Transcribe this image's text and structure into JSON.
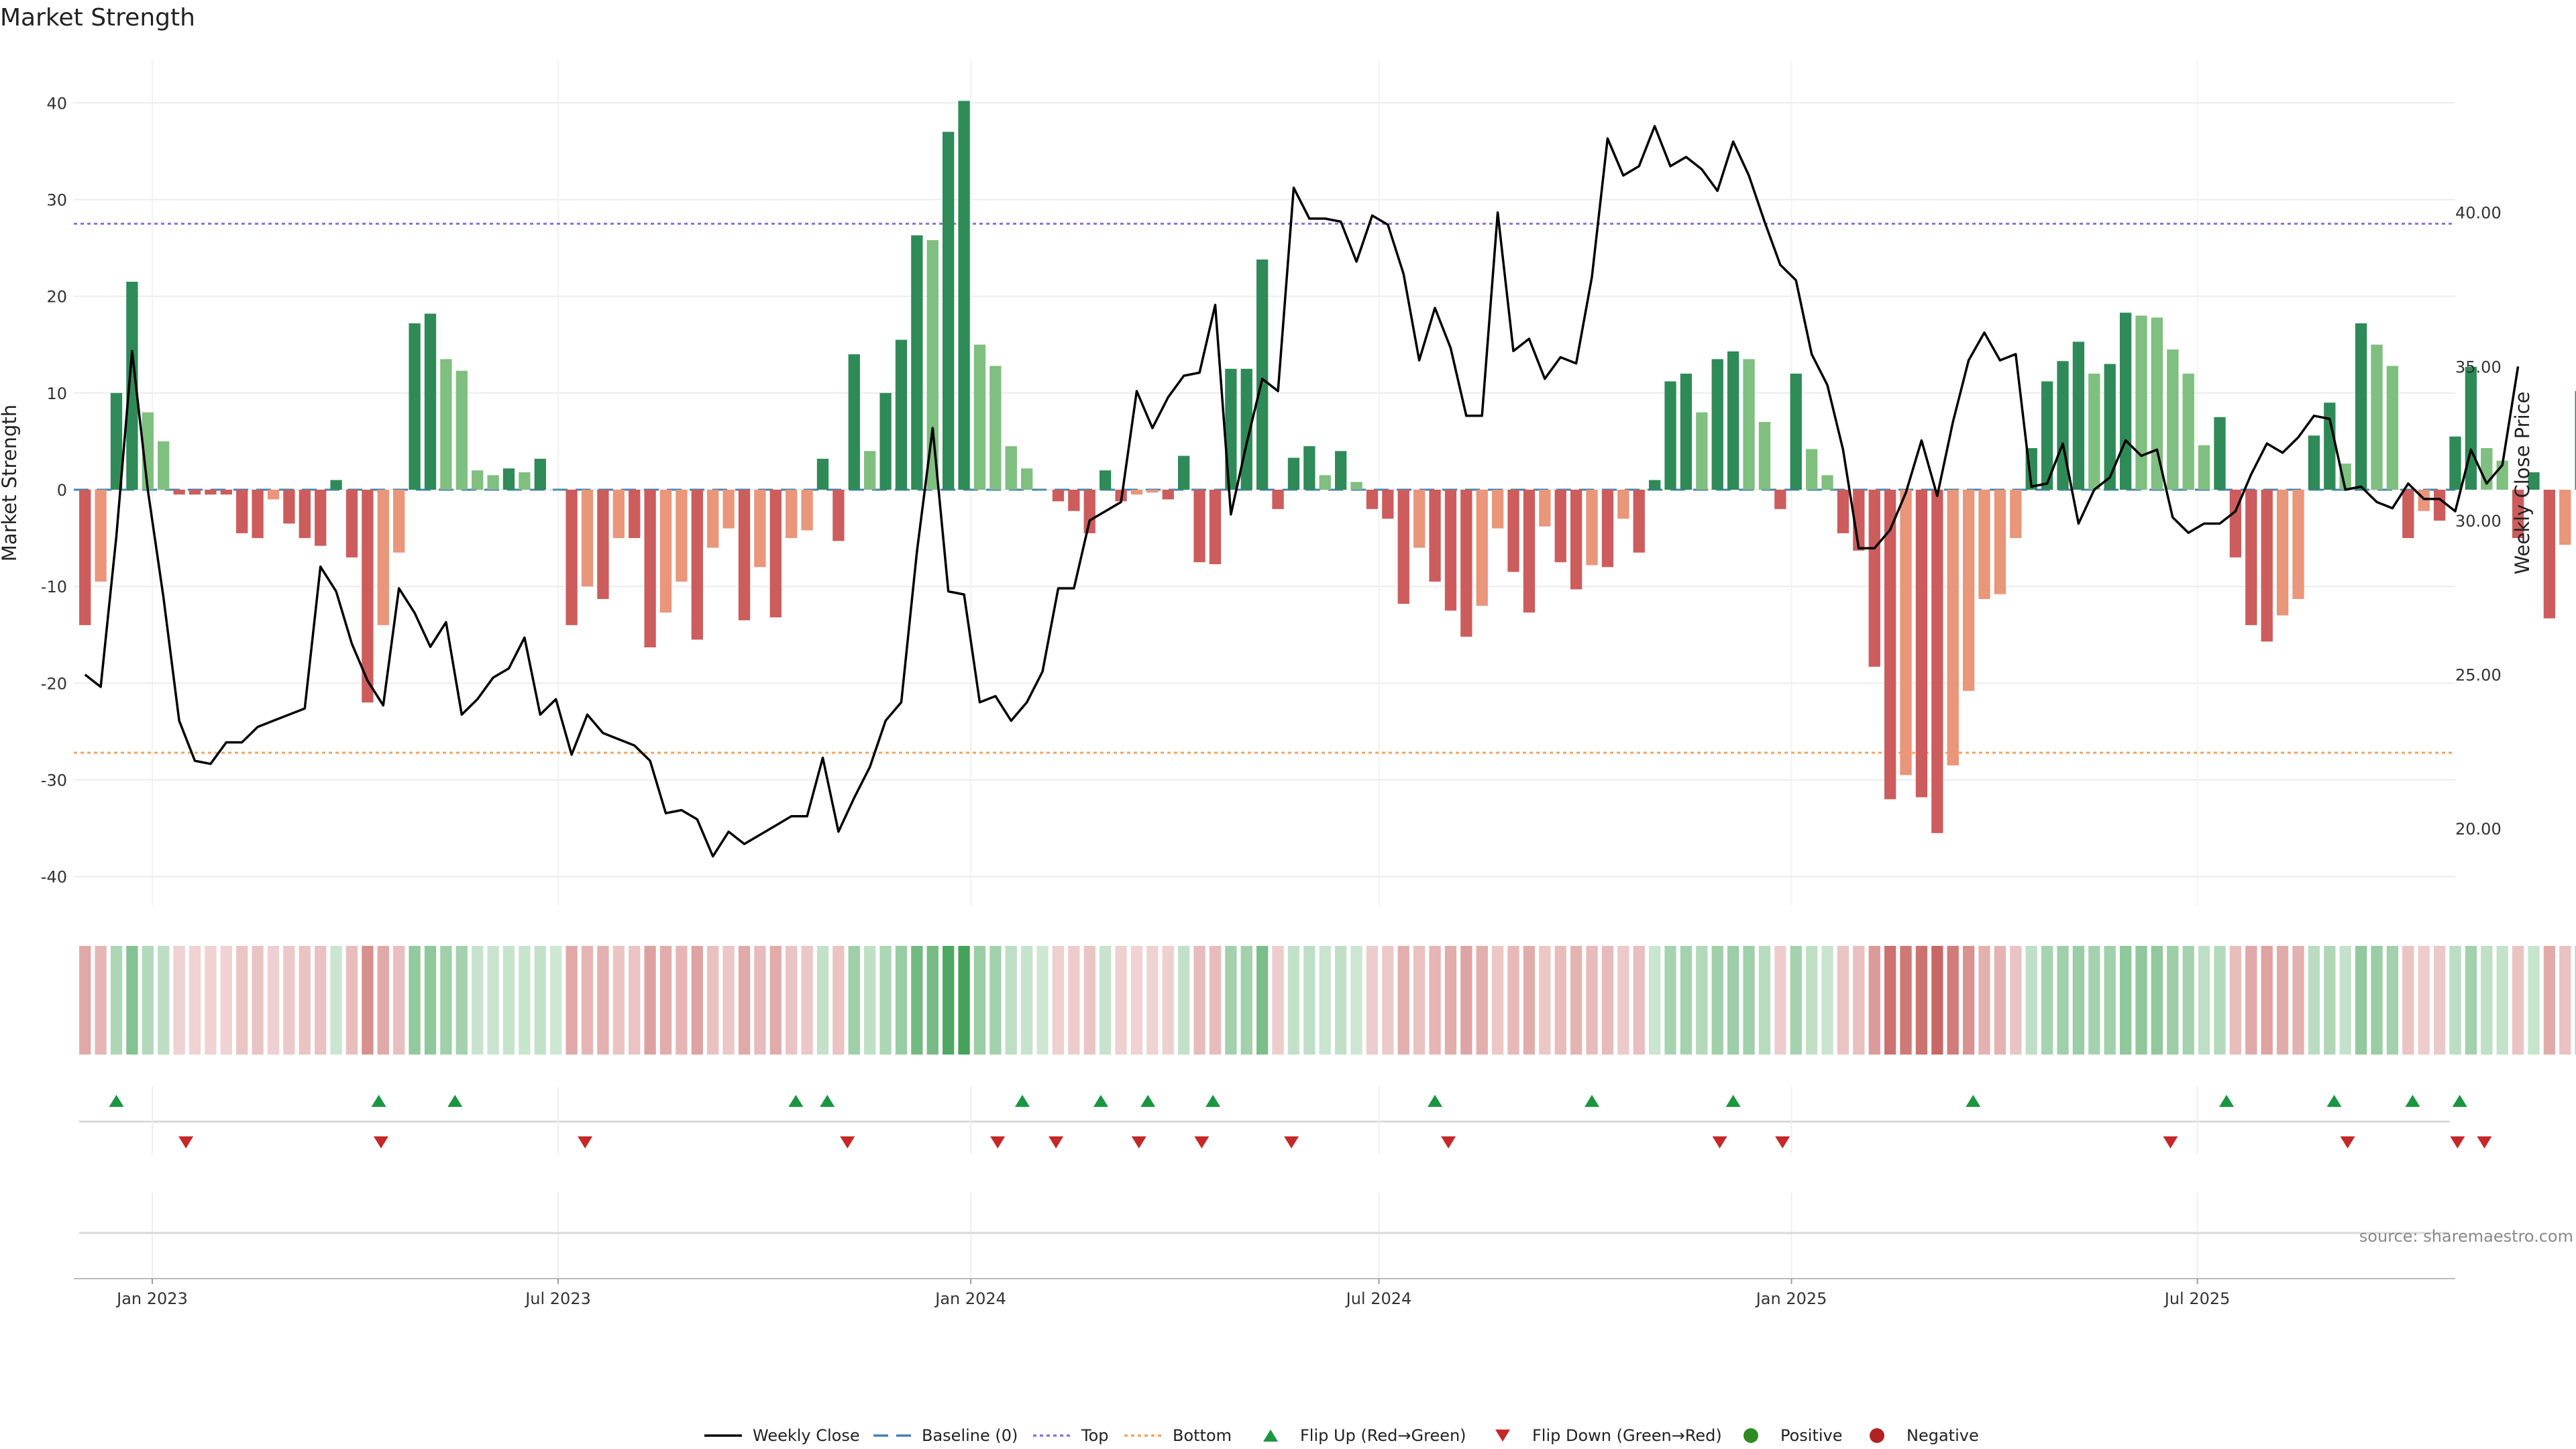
{
  "title": "Market Strength",
  "source": "source: sharemaestro.com",
  "colors": {
    "strong_green": "#2e8b57",
    "light_green": "#7fbf7f",
    "strong_red": "#cd5c5c",
    "light_red": "#e9967a",
    "price_line": "#000000",
    "baseline": "#4682b4",
    "top": "#9370db",
    "bottom": "#f4a460",
    "flip_up": "#1a9641",
    "flip_down": "#c62828",
    "positive": "#2e8b22",
    "negative": "#b22222"
  },
  "chart_data": {
    "type": "bar",
    "title": "Market Strength",
    "ylabel": "Market Strength",
    "y2label": "Weekly Close Price",
    "ylim": [
      -43,
      43
    ],
    "y2lim": [
      17.5,
      44.5
    ],
    "x_date_range": [
      "2022-11-27",
      "2025-10-24"
    ],
    "yticks": [
      -40,
      -30,
      -20,
      -10,
      0,
      10,
      20,
      30,
      40
    ],
    "y2ticks": [
      "20.00",
      "25.00",
      "30.00",
      "35.00",
      "40.00"
    ],
    "xticks": [
      {
        "date": "2023-01-01",
        "label": "Jan 2023"
      },
      {
        "date": "2023-07-01",
        "label": "Jul 2023"
      },
      {
        "date": "2024-01-01",
        "label": "Jan 2024"
      },
      {
        "date": "2024-07-01",
        "label": "Jul 2024"
      },
      {
        "date": "2025-01-01",
        "label": "Jan 2025"
      },
      {
        "date": "2025-07-01",
        "label": "Jul 2025"
      }
    ],
    "top_level": 27.5,
    "bottom_level": -27.2,
    "grid": true,
    "legend_position": "bottom-center",
    "bar_start_date": "2022-12-02",
    "bar_interval_days": 7,
    "strength_weekly": [
      -14,
      -9.5,
      10,
      21.5,
      8,
      5,
      -0.5,
      -0.5,
      -0.5,
      -0.5,
      -4.5,
      -5,
      -1,
      -3.5,
      -5,
      -5.8,
      1,
      -7,
      -22,
      -14,
      -6.5,
      17.2,
      18.2,
      13.5,
      12.3,
      2,
      1.5,
      2.2,
      1.8,
      3.2,
      0,
      -14,
      -10,
      -11.3,
      -5,
      -5,
      -16.3,
      -12.7,
      -9.5,
      -15.5,
      -6,
      -4,
      -13.5,
      -8,
      -13.2,
      -5,
      -4.2,
      3.2,
      -5.3,
      14,
      4,
      10,
      15.5,
      26.3,
      25.8,
      37,
      40.2,
      15,
      12.8,
      4.5,
      2.2,
      0,
      -1.2,
      -2.2,
      -4.5,
      2,
      -1.2,
      -0.5,
      -0.3,
      -1,
      3.5,
      -7.5,
      -7.7,
      12.5,
      12.5,
      23.8,
      -2,
      3.3,
      4.5,
      1.5,
      4,
      0.8,
      -2,
      -3,
      -11.8,
      -6,
      -9.5,
      -12.5,
      -15.2,
      -12,
      -4,
      -8.5,
      -12.7,
      -3.8,
      -7.5,
      -10.3,
      -7.8,
      -8,
      -3,
      -6.5,
      1,
      11.2,
      12,
      8,
      13.5,
      14.3,
      13.5,
      7,
      -2,
      12,
      4.2,
      1.5,
      -4.5,
      -6.3,
      -18.3,
      -32,
      -29.5,
      -31.8,
      -35.5,
      -28.5,
      -20.8,
      -11.3,
      -10.8,
      -5,
      4.3,
      11.2,
      13.3,
      15.3,
      12,
      13,
      18.3,
      18,
      17.8,
      14.5,
      12,
      4.6,
      7.5,
      -7,
      -14,
      -15.7,
      -13,
      -11.3,
      5.6,
      9,
      2.7,
      17.2,
      15,
      12.8,
      -5,
      -2.2,
      -3.2,
      5.5,
      12.7,
      4.3,
      3,
      -5,
      1.8,
      -13.3,
      -5.7,
      10.2
    ],
    "weekly_close": [
      [
        "2022-12-02",
        25.0
      ],
      [
        "2022-12-09",
        24.6
      ],
      [
        "2022-12-16",
        29.5
      ],
      [
        "2022-12-23",
        35.5
      ],
      [
        "2022-12-30",
        31.0
      ],
      [
        "2023-01-06",
        27.5
      ],
      [
        "2023-01-13",
        23.5
      ],
      [
        "2023-01-20",
        22.2
      ],
      [
        "2023-01-27",
        22.1
      ],
      [
        "2023-02-03",
        22.8
      ],
      [
        "2023-02-10",
        22.8
      ],
      [
        "2023-02-17",
        23.3
      ],
      [
        "2023-02-24",
        23.5
      ],
      [
        "2023-03-03",
        23.7
      ],
      [
        "2023-03-10",
        23.9
      ],
      [
        "2023-03-17",
        28.5
      ],
      [
        "2023-03-24",
        27.7
      ],
      [
        "2023-03-31",
        26.0
      ],
      [
        "2023-04-07",
        24.8
      ],
      [
        "2023-04-14",
        24.0
      ],
      [
        "2023-04-21",
        27.8
      ],
      [
        "2023-04-28",
        27.0
      ],
      [
        "2023-05-05",
        25.9
      ],
      [
        "2023-05-12",
        26.7
      ],
      [
        "2023-05-19",
        23.7
      ],
      [
        "2023-05-26",
        24.2
      ],
      [
        "2023-06-02",
        24.9
      ],
      [
        "2023-06-09",
        25.2
      ],
      [
        "2023-06-16",
        26.2
      ],
      [
        "2023-06-23",
        23.7
      ],
      [
        "2023-06-30",
        24.2
      ],
      [
        "2023-07-07",
        22.4
      ],
      [
        "2023-07-14",
        23.7
      ],
      [
        "2023-07-21",
        23.1
      ],
      [
        "2023-07-28",
        22.9
      ],
      [
        "2023-08-04",
        22.7
      ],
      [
        "2023-08-11",
        22.2
      ],
      [
        "2023-08-18",
        20.5
      ],
      [
        "2023-08-25",
        20.6
      ],
      [
        "2023-09-01",
        20.3
      ],
      [
        "2023-09-08",
        19.1
      ],
      [
        "2023-09-15",
        19.9
      ],
      [
        "2023-09-22",
        19.5
      ],
      [
        "2023-09-29",
        19.8
      ],
      [
        "2023-10-06",
        20.1
      ],
      [
        "2023-10-13",
        20.4
      ],
      [
        "2023-10-20",
        20.4
      ],
      [
        "2023-10-27",
        22.3
      ],
      [
        "2023-11-03",
        19.9
      ],
      [
        "2023-11-10",
        21.0
      ],
      [
        "2023-11-17",
        22.0
      ],
      [
        "2023-11-24",
        23.5
      ],
      [
        "2023-12-01",
        24.1
      ],
      [
        "2023-12-08",
        29.0
      ],
      [
        "2023-12-15",
        33.0
      ],
      [
        "2023-12-22",
        27.7
      ],
      [
        "2023-12-29",
        27.6
      ],
      [
        "2024-01-05",
        24.1
      ],
      [
        "2024-01-12",
        24.3
      ],
      [
        "2024-01-19",
        23.5
      ],
      [
        "2024-01-26",
        24.1
      ],
      [
        "2024-02-02",
        25.1
      ],
      [
        "2024-02-09",
        27.8
      ],
      [
        "2024-02-16",
        27.8
      ],
      [
        "2024-02-23",
        30.0
      ],
      [
        "2024-03-01",
        30.3
      ],
      [
        "2024-03-08",
        30.6
      ],
      [
        "2024-03-15",
        34.2
      ],
      [
        "2024-03-22",
        33.0
      ],
      [
        "2024-03-29",
        34.0
      ],
      [
        "2024-04-05",
        34.7
      ],
      [
        "2024-04-12",
        34.8
      ],
      [
        "2024-04-19",
        37.0
      ],
      [
        "2024-04-26",
        30.2
      ],
      [
        "2024-05-03",
        32.5
      ],
      [
        "2024-05-10",
        34.6
      ],
      [
        "2024-05-17",
        34.2
      ],
      [
        "2024-05-24",
        40.8
      ],
      [
        "2024-05-31",
        39.8
      ],
      [
        "2024-06-07",
        39.8
      ],
      [
        "2024-06-14",
        39.7
      ],
      [
        "2024-06-21",
        38.4
      ],
      [
        "2024-06-28",
        39.9
      ],
      [
        "2024-07-05",
        39.6
      ],
      [
        "2024-07-12",
        38.0
      ],
      [
        "2024-07-19",
        35.2
      ],
      [
        "2024-07-26",
        36.9
      ],
      [
        "2024-08-02",
        35.6
      ],
      [
        "2024-08-09",
        33.4
      ],
      [
        "2024-08-16",
        33.4
      ],
      [
        "2024-08-23",
        40.0
      ],
      [
        "2024-08-30",
        35.5
      ],
      [
        "2024-09-06",
        35.9
      ],
      [
        "2024-09-13",
        34.6
      ],
      [
        "2024-09-20",
        35.3
      ],
      [
        "2024-09-27",
        35.1
      ],
      [
        "2024-10-04",
        37.9
      ],
      [
        "2024-10-11",
        42.4
      ],
      [
        "2024-10-18",
        41.2
      ],
      [
        "2024-10-25",
        41.5
      ],
      [
        "2024-11-01",
        42.8
      ],
      [
        "2024-11-08",
        41.5
      ],
      [
        "2024-11-15",
        41.8
      ],
      [
        "2024-11-22",
        41.4
      ],
      [
        "2024-11-29",
        40.7
      ],
      [
        "2024-12-06",
        42.3
      ],
      [
        "2024-12-13",
        41.2
      ],
      [
        "2024-12-20",
        39.7
      ],
      [
        "2024-12-27",
        38.3
      ],
      [
        "2025-01-03",
        37.8
      ],
      [
        "2025-01-10",
        35.4
      ],
      [
        "2025-01-17",
        34.4
      ],
      [
        "2025-01-24",
        32.3
      ],
      [
        "2025-01-31",
        29.1
      ],
      [
        "2025-02-07",
        29.1
      ],
      [
        "2025-02-14",
        29.7
      ],
      [
        "2025-02-21",
        30.9
      ],
      [
        "2025-02-28",
        32.6
      ],
      [
        "2025-03-07",
        30.8
      ],
      [
        "2025-03-14",
        33.2
      ],
      [
        "2025-03-21",
        35.2
      ],
      [
        "2025-03-28",
        36.1
      ],
      [
        "2025-04-04",
        35.2
      ],
      [
        "2025-04-11",
        35.4
      ],
      [
        "2025-04-18",
        31.1
      ],
      [
        "2025-04-25",
        31.2
      ],
      [
        "2025-05-02",
        32.5
      ],
      [
        "2025-05-09",
        29.9
      ],
      [
        "2025-05-16",
        31.0
      ],
      [
        "2025-05-23",
        31.4
      ],
      [
        "2025-05-30",
        32.6
      ],
      [
        "2025-06-06",
        32.1
      ],
      [
        "2025-06-13",
        32.3
      ],
      [
        "2025-06-20",
        30.1
      ],
      [
        "2025-06-27",
        29.6
      ],
      [
        "2025-07-04",
        29.9
      ],
      [
        "2025-07-11",
        29.9
      ],
      [
        "2025-07-18",
        30.3
      ],
      [
        "2025-07-25",
        31.5
      ],
      [
        "2025-08-01",
        32.5
      ],
      [
        "2025-08-08",
        32.2
      ],
      [
        "2025-08-15",
        32.7
      ],
      [
        "2025-08-22",
        33.4
      ],
      [
        "2025-08-29",
        33.3
      ],
      [
        "2025-09-05",
        31.0
      ],
      [
        "2025-09-12",
        31.1
      ],
      [
        "2025-09-19",
        30.6
      ],
      [
        "2025-09-26",
        30.4
      ],
      [
        "2025-10-03",
        31.2
      ],
      [
        "2025-10-10",
        30.7
      ],
      [
        "2025-10-17",
        30.7
      ],
      [
        "2025-10-24",
        30.3
      ],
      [
        "2025-10-31",
        32.3
      ],
      [
        "2025-11-07",
        31.2
      ],
      [
        "2025-11-14",
        31.8
      ],
      [
        "2025-11-21",
        35.0
      ]
    ],
    "flip_up_dates": [
      "2022-12-16",
      "2023-04-12",
      "2023-05-16",
      "2023-10-15",
      "2023-10-29",
      "2024-01-24",
      "2024-02-28",
      "2024-03-20",
      "2024-04-18",
      "2024-07-26",
      "2024-10-04",
      "2024-12-06",
      "2025-03-23",
      "2025-07-14",
      "2025-08-31",
      "2025-10-05",
      "2025-10-26"
    ],
    "flip_down_dates": [
      "2023-01-16",
      "2023-04-13",
      "2023-07-13",
      "2023-11-07",
      "2024-01-13",
      "2024-02-08",
      "2024-03-16",
      "2024-04-13",
      "2024-05-23",
      "2024-08-01",
      "2024-11-30",
      "2024-12-28",
      "2025-06-19",
      "2025-09-06",
      "2025-10-25",
      "2025-11-06"
    ],
    "series": [
      {
        "name": "Weekly Close"
      },
      {
        "name": "Baseline (0)"
      },
      {
        "name": "Top"
      },
      {
        "name": "Bottom"
      },
      {
        "name": "Flip Up (Red→Green)"
      },
      {
        "name": "Flip Down (Green→Red)"
      },
      {
        "name": "Positive"
      },
      {
        "name": "Negative"
      }
    ]
  }
}
